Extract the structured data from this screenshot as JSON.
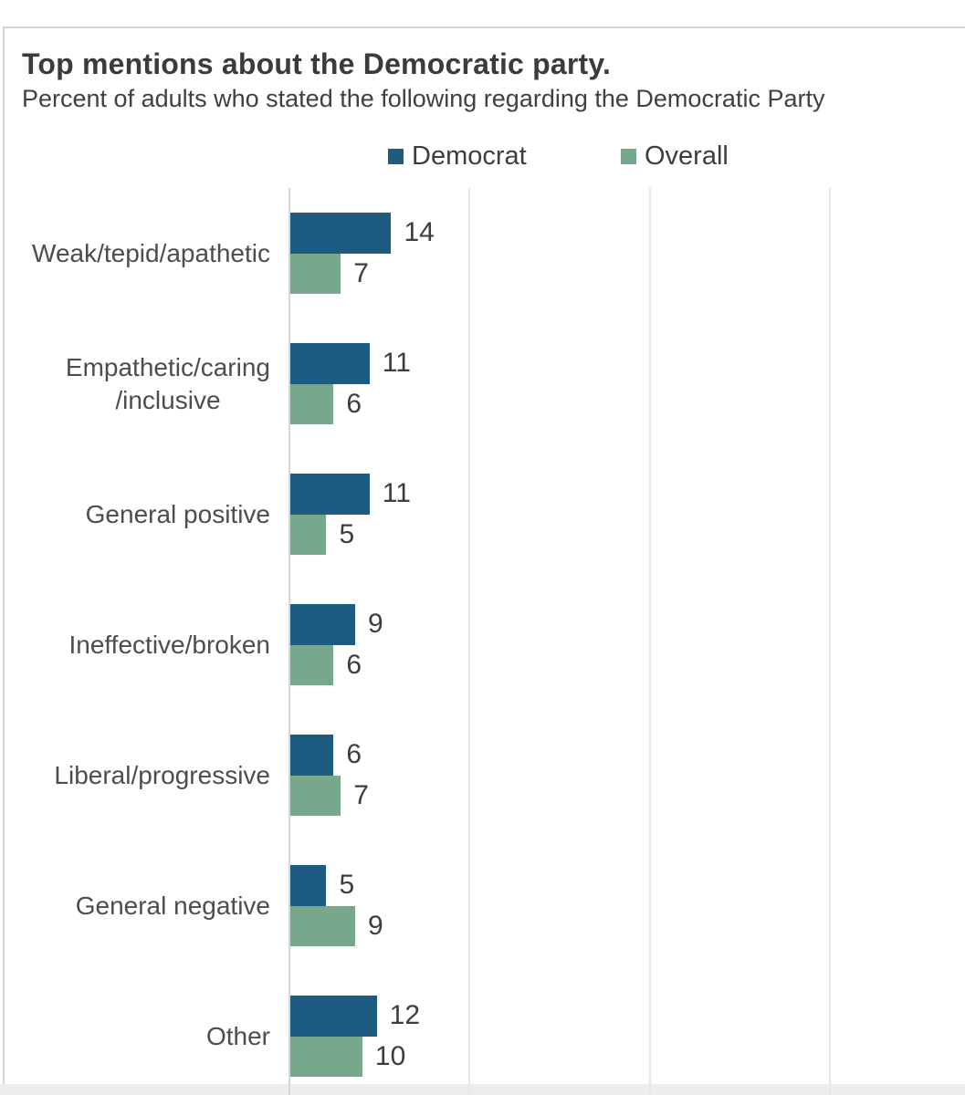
{
  "header": {
    "title": "Top mentions about the Democratic party.",
    "subtitle": "Percent of adults who stated the following regarding the Democratic Party"
  },
  "colors": {
    "democrat": "#1d5c80",
    "overall": "#78a88c",
    "axis_line": "#d6d6d6",
    "gridline": "#e8e8e8"
  },
  "chart_data": {
    "type": "bar",
    "orientation": "horizontal",
    "title": "Top mentions about the Democratic party.",
    "subtitle": "Percent of adults who stated the following regarding the Democratic Party",
    "categories": [
      "Weak/tepid/apathetic",
      "Empathetic/caring\n/inclusive",
      "General positive",
      "Ineffective/broken",
      "Liberal/progressive",
      "General negative",
      "Other"
    ],
    "series": [
      {
        "name": "Democrat",
        "color": "#1d5c80",
        "values": [
          14,
          11,
          11,
          9,
          6,
          5,
          12
        ]
      },
      {
        "name": "Overall",
        "color": "#78a88c",
        "values": [
          7,
          6,
          5,
          6,
          7,
          9,
          10
        ]
      }
    ],
    "xlim": [
      0,
      100
    ],
    "gridline_step": 25,
    "value_labels": true,
    "legend_position": "top",
    "grid": true
  }
}
